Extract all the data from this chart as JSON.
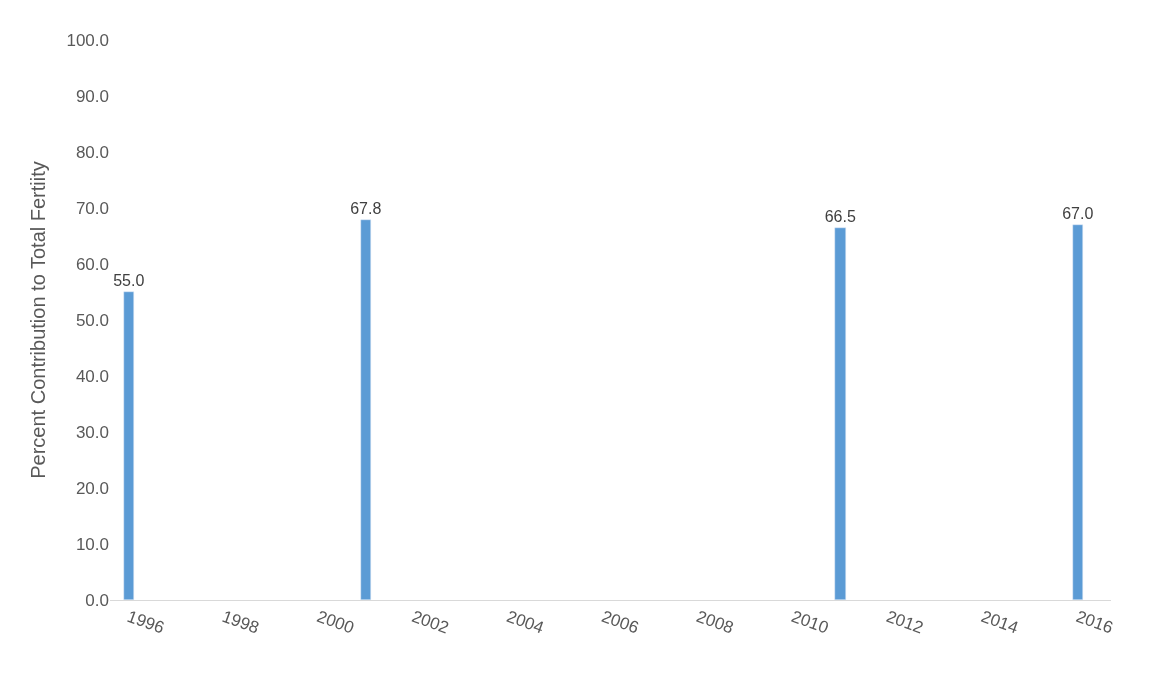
{
  "chart_data": {
    "type": "bar",
    "ylabel": "Percent Contribution to Total Fertiity",
    "x": [
      1996,
      2001,
      2011,
      2016
    ],
    "values": [
      55.0,
      67.8,
      66.5,
      67.0
    ],
    "color": "#5b9bd5",
    "xlim": [
      1995.6,
      2016.7
    ],
    "xticks": [
      1996,
      1998,
      2000,
      2002,
      2004,
      2006,
      2008,
      2010,
      2012,
      2014,
      2016
    ],
    "ylim": [
      0,
      100
    ],
    "yticks": [
      {
        "value": 0,
        "label": "0.0"
      },
      {
        "value": 10,
        "label": "10.0"
      },
      {
        "value": 20,
        "label": "20.0"
      },
      {
        "value": 30,
        "label": "30.0"
      },
      {
        "value": 40,
        "label": "40.0"
      },
      {
        "value": 50,
        "label": "50.0"
      },
      {
        "value": 60,
        "label": "60.0"
      },
      {
        "value": 70,
        "label": "70.0"
      },
      {
        "value": 80,
        "label": "80.0"
      },
      {
        "value": 90,
        "label": "90.0"
      },
      {
        "value": 100,
        "label": "100.0"
      }
    ],
    "value_labels": [
      "55.0",
      "67.8",
      "66.5",
      "67.0"
    ],
    "grid": false,
    "legend": false
  }
}
